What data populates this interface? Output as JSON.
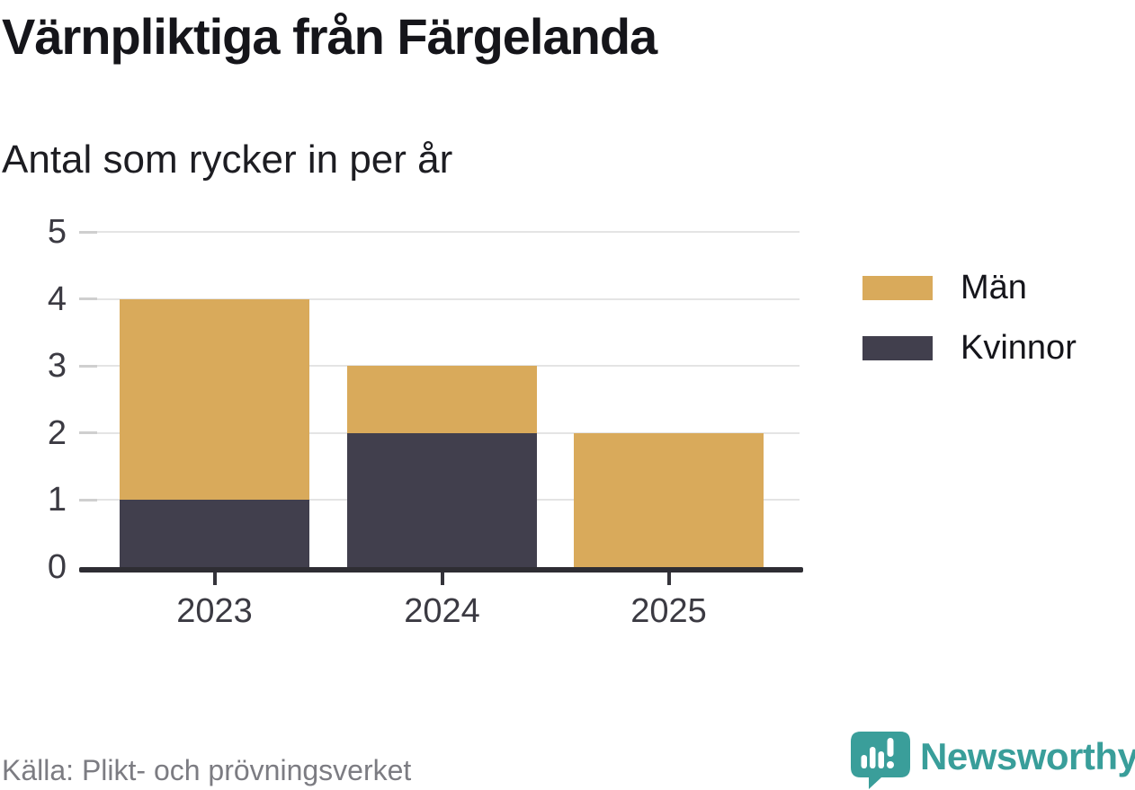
{
  "chart_data": {
    "type": "bar",
    "stacked": true,
    "title": "Värnpliktiga från Färgelanda",
    "subtitle": "Antal som rycker in per år",
    "categories": [
      "2023",
      "2024",
      "2025"
    ],
    "series": [
      {
        "name": "Män",
        "color": "#d9aa5b",
        "values": [
          3,
          1,
          2
        ]
      },
      {
        "name": "Kvinnor",
        "color": "#413f4d",
        "values": [
          1,
          2,
          0
        ]
      }
    ],
    "totals": [
      4,
      3,
      2
    ],
    "stack_order_bottom_to_top": [
      "Kvinnor",
      "Män"
    ],
    "ylim": [
      0,
      5
    ],
    "yticks": [
      0,
      1,
      2,
      3,
      4,
      5
    ],
    "grid": true,
    "legend_position": "right"
  },
  "footer": {
    "source": "Källa: Plikt- och prövningsverket",
    "brand": "Newsworthy",
    "brand_color": "#399e9a"
  }
}
